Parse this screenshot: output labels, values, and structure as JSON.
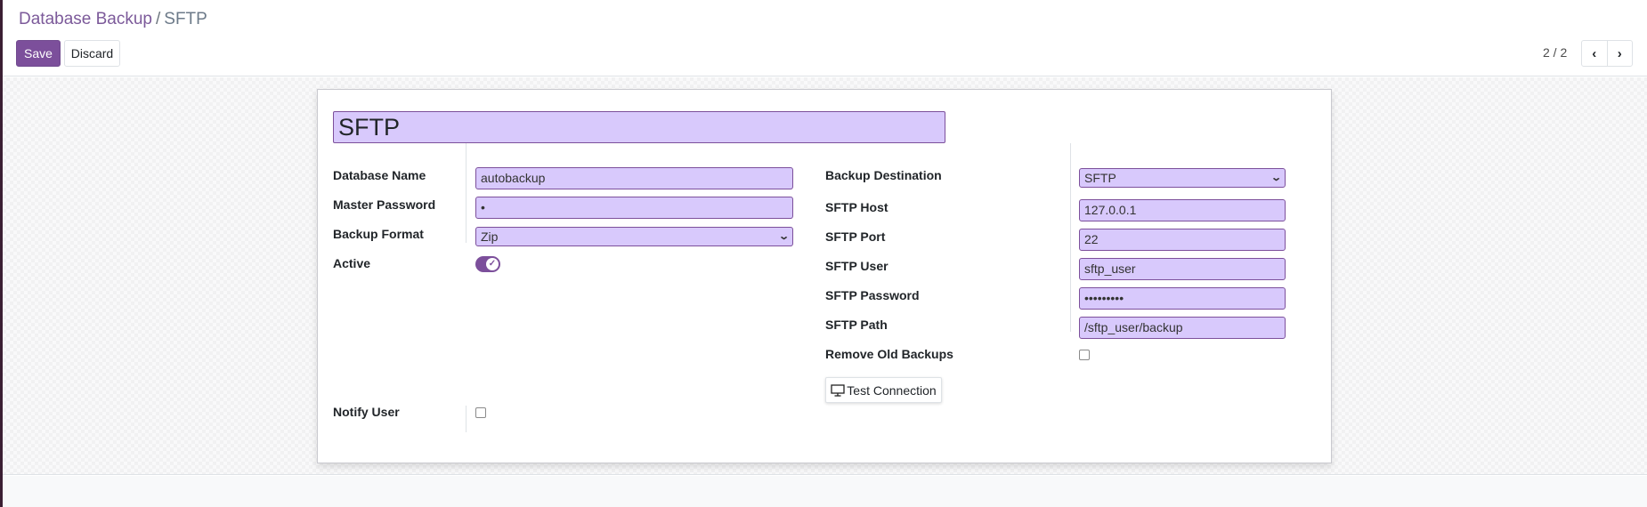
{
  "breadcrumb": {
    "parent": "Database Backup",
    "separator": "/",
    "current": "SFTP"
  },
  "toolbar": {
    "save_label": "Save",
    "discard_label": "Discard"
  },
  "pager": {
    "value": "2 / 2",
    "prev_icon": "chevron-left-icon",
    "next_icon": "chevron-right-icon",
    "prev": "‹",
    "next": "›"
  },
  "colors": {
    "accent": "#7c4f9b",
    "field_bg": "#d8c9fc"
  },
  "form": {
    "name": "SFTP",
    "left": {
      "database_name": {
        "label": "Database Name",
        "value": "autobackup"
      },
      "master_password": {
        "label": "Master Password",
        "value": "•"
      },
      "backup_format": {
        "label": "Backup Format",
        "value": "Zip"
      },
      "active": {
        "label": "Active",
        "value": true
      },
      "notify_user": {
        "label": "Notify User",
        "value": false
      }
    },
    "right": {
      "backup_destination": {
        "label": "Backup Destination",
        "value": "SFTP"
      },
      "sftp_host": {
        "label": "SFTP Host",
        "value": "127.0.0.1"
      },
      "sftp_port": {
        "label": "SFTP Port",
        "value": "22"
      },
      "sftp_user": {
        "label": "SFTP User",
        "value": "sftp_user"
      },
      "sftp_password": {
        "label": "SFTP Password",
        "value": "•••••••••"
      },
      "sftp_path": {
        "label": "SFTP Path",
        "value": "/sftp_user/backup"
      },
      "remove_old_backups": {
        "label": "Remove Old Backups",
        "value": false
      }
    },
    "test_connection_label": "Test Connection"
  }
}
